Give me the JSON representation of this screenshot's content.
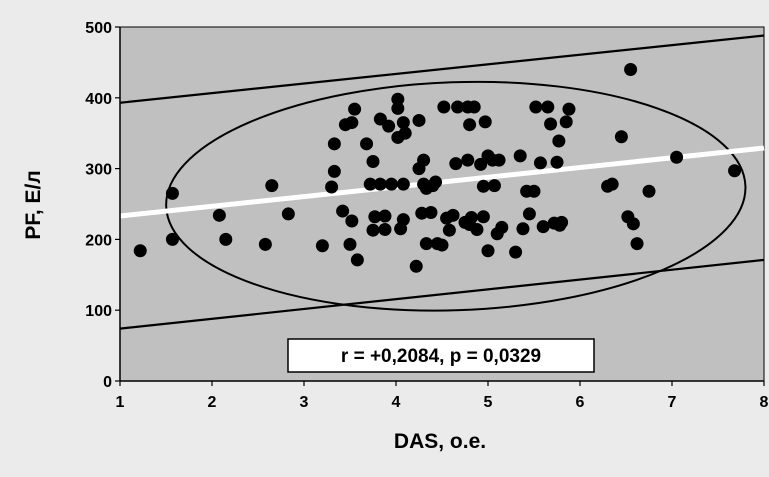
{
  "chart_data": {
    "type": "scatter",
    "title": "",
    "xlabel": "DAS, о.е.",
    "ylabel": "PF, Е/л",
    "xlim": [
      1,
      8
    ],
    "ylim": [
      0,
      500
    ],
    "x_ticks": [
      "1",
      "2",
      "3",
      "4",
      "5",
      "6",
      "7",
      "8"
    ],
    "y_ticks": [
      "0",
      "100",
      "200",
      "300",
      "400",
      "500"
    ],
    "grid": false,
    "annotation": "r = +0,2084, p = 0,0329",
    "colors": {
      "background": "#ebebeb",
      "plot_area": "#c0c0c0",
      "points": "#000000",
      "regression_line": "#ffffff",
      "confidence_lines": "#000000"
    },
    "regression_line": [
      [
        1,
        233
      ],
      [
        8,
        329
      ]
    ],
    "prediction_bounds": {
      "upper": [
        [
          1,
          393
        ],
        [
          8,
          488
        ]
      ],
      "lower": [
        [
          1,
          74
        ],
        [
          8,
          171
        ]
      ]
    },
    "confidence_ellipse": {
      "center": [
        4.65,
        261
      ],
      "semi_axis_x": 3.15,
      "semi_axis_y": 161,
      "rotation_deg": 2
    },
    "points": [
      [
        1.22,
        184
      ],
      [
        1.57,
        265
      ],
      [
        1.57,
        200
      ],
      [
        2.08,
        234
      ],
      [
        2.15,
        200
      ],
      [
        2.58,
        193
      ],
      [
        2.65,
        276
      ],
      [
        2.83,
        236
      ],
      [
        3.2,
        191
      ],
      [
        3.3,
        274
      ],
      [
        3.33,
        296
      ],
      [
        3.33,
        335
      ],
      [
        3.42,
        240
      ],
      [
        3.45,
        362
      ],
      [
        3.5,
        193
      ],
      [
        3.52,
        226
      ],
      [
        3.52,
        365
      ],
      [
        3.55,
        384
      ],
      [
        3.58,
        171
      ],
      [
        3.68,
        335
      ],
      [
        3.72,
        278
      ],
      [
        3.75,
        310
      ],
      [
        3.75,
        213
      ],
      [
        3.77,
        232
      ],
      [
        3.83,
        370
      ],
      [
        3.83,
        278
      ],
      [
        3.88,
        233
      ],
      [
        3.88,
        214
      ],
      [
        3.92,
        360
      ],
      [
        3.95,
        278
      ],
      [
        4.02,
        344
      ],
      [
        4.02,
        385
      ],
      [
        4.02,
        398
      ],
      [
        4.05,
        215
      ],
      [
        4.08,
        228
      ],
      [
        4.08,
        278
      ],
      [
        4.08,
        365
      ],
      [
        4.1,
        350
      ],
      [
        4.22,
        162
      ],
      [
        4.25,
        368
      ],
      [
        4.25,
        300
      ],
      [
        4.28,
        237
      ],
      [
        4.3,
        312
      ],
      [
        4.3,
        278
      ],
      [
        4.33,
        272
      ],
      [
        4.33,
        194
      ],
      [
        4.38,
        238
      ],
      [
        4.4,
        276
      ],
      [
        4.43,
        281
      ],
      [
        4.45,
        194
      ],
      [
        4.5,
        192
      ],
      [
        4.52,
        387
      ],
      [
        4.55,
        230
      ],
      [
        4.58,
        213
      ],
      [
        4.62,
        234
      ],
      [
        4.65,
        307
      ],
      [
        4.67,
        387
      ],
      [
        4.75,
        224
      ],
      [
        4.78,
        312
      ],
      [
        4.78,
        387
      ],
      [
        4.8,
        362
      ],
      [
        4.8,
        221
      ],
      [
        4.82,
        231
      ],
      [
        4.85,
        387
      ],
      [
        4.88,
        214
      ],
      [
        4.92,
        306
      ],
      [
        4.95,
        275
      ],
      [
        4.95,
        232
      ],
      [
        4.97,
        366
      ],
      [
        5.0,
        318
      ],
      [
        5.0,
        184
      ],
      [
        5.05,
        312
      ],
      [
        5.07,
        276
      ],
      [
        5.1,
        208
      ],
      [
        5.12,
        312
      ],
      [
        5.15,
        217
      ],
      [
        5.3,
        182
      ],
      [
        5.35,
        318
      ],
      [
        5.38,
        215
      ],
      [
        5.42,
        268
      ],
      [
        5.45,
        236
      ],
      [
        5.5,
        268
      ],
      [
        5.52,
        387
      ],
      [
        5.57,
        308
      ],
      [
        5.6,
        218
      ],
      [
        5.65,
        387
      ],
      [
        5.68,
        363
      ],
      [
        5.72,
        223
      ],
      [
        5.75,
        309
      ],
      [
        5.77,
        339
      ],
      [
        5.78,
        220
      ],
      [
        5.8,
        224
      ],
      [
        5.85,
        366
      ],
      [
        5.88,
        384
      ],
      [
        6.3,
        275
      ],
      [
        6.35,
        278
      ],
      [
        6.45,
        345
      ],
      [
        6.52,
        232
      ],
      [
        6.55,
        440
      ],
      [
        6.58,
        222
      ],
      [
        6.62,
        194
      ],
      [
        6.75,
        268
      ],
      [
        7.05,
        316
      ],
      [
        7.68,
        297
      ]
    ]
  }
}
